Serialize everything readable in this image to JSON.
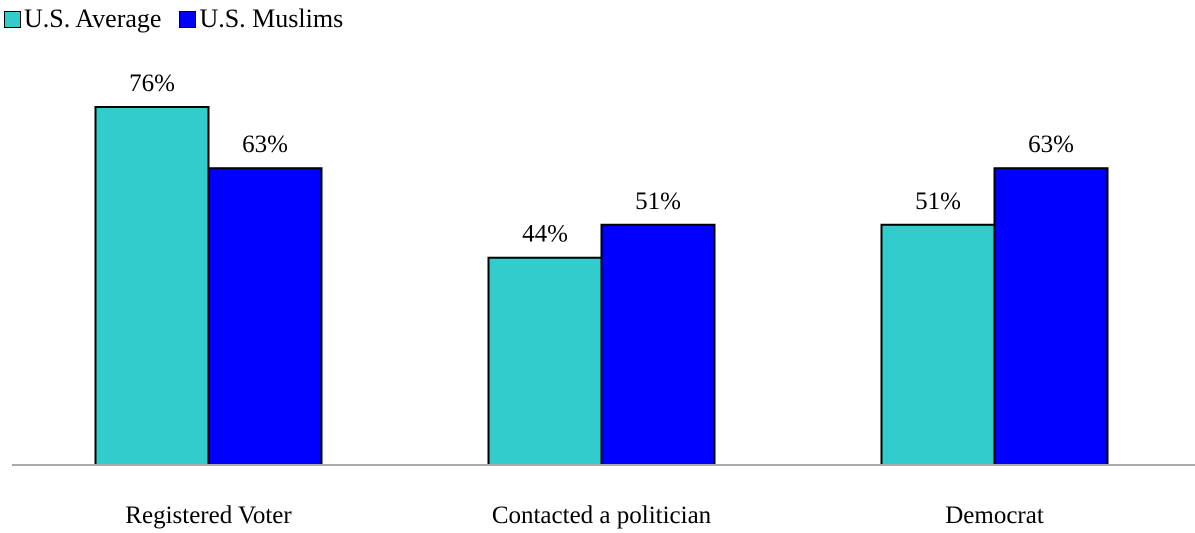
{
  "chart_data": {
    "type": "bar",
    "categories": [
      "Registered Voter",
      "Contacted a politician",
      "Democrat"
    ],
    "series": [
      {
        "name": "U.S. Average",
        "values": [
          76,
          44,
          51
        ],
        "labels": [
          "76%",
          "44%",
          "51%"
        ],
        "color": "#33CCCC"
      },
      {
        "name": "U.S. Muslims",
        "values": [
          63,
          51,
          63
        ],
        "labels": [
          "63%",
          "51%",
          "63%"
        ],
        "color": "#0000FF"
      }
    ],
    "ylim": [
      0,
      76
    ],
    "grid": false,
    "legend": "top-left"
  }
}
